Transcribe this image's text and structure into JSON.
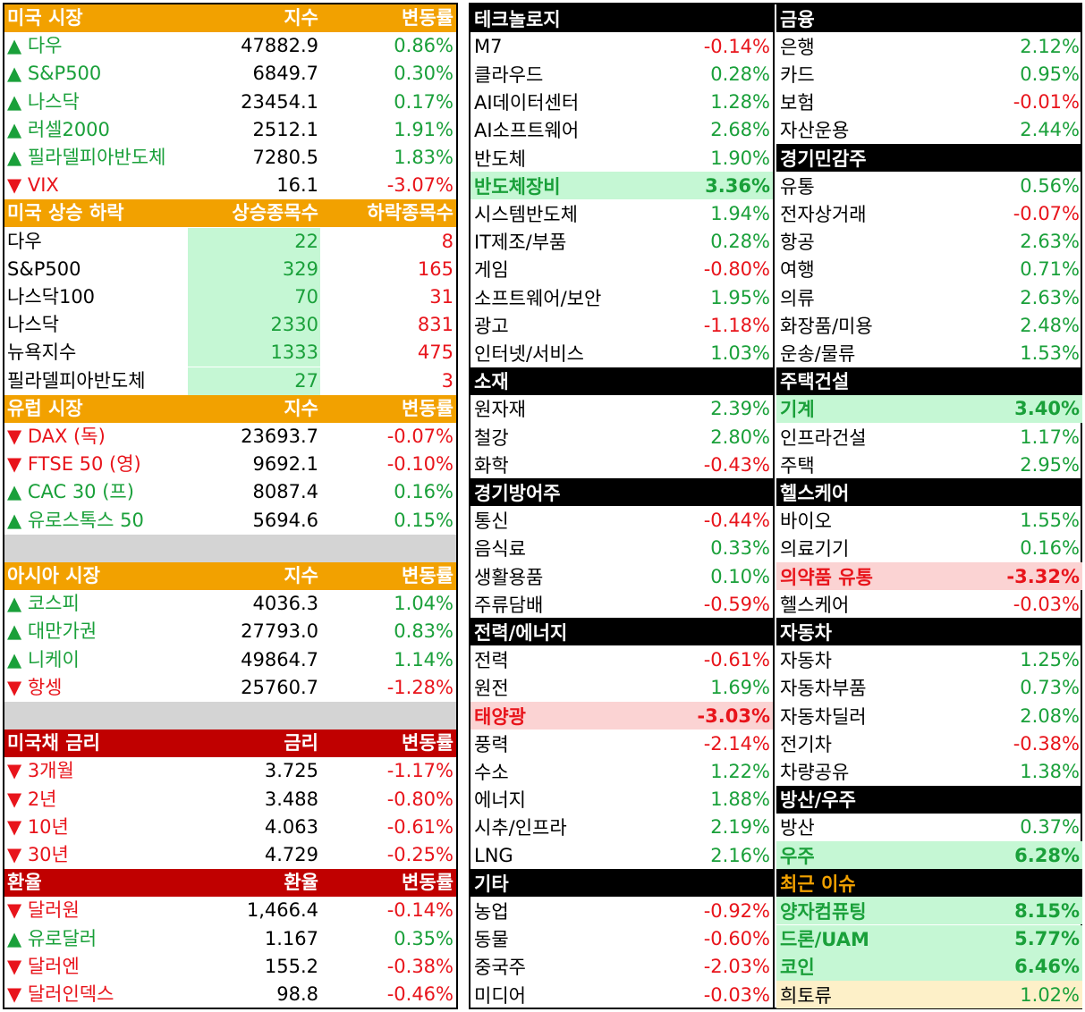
{
  "left": {
    "us_market": {
      "header": [
        "미국 시장",
        "지수",
        "변동률"
      ],
      "rows": [
        {
          "name": "▲ 다우",
          "value": "47882.9",
          "change": "0.86%",
          "dir": "up"
        },
        {
          "name": "▲ S&P500",
          "value": "6849.7",
          "change": "0.30%",
          "dir": "up"
        },
        {
          "name": "▲ 나스닥",
          "value": "23454.1",
          "change": "0.17%",
          "dir": "up"
        },
        {
          "name": "▲ 러셀2000",
          "value": "2512.1",
          "change": "1.91%",
          "dir": "up"
        },
        {
          "name": "▲ 필라델피아반도체",
          "value": "7280.5",
          "change": "1.83%",
          "dir": "up"
        },
        {
          "name": "▼ VIX",
          "value": "16.1",
          "change": "-3.07%",
          "dir": "dn"
        }
      ]
    },
    "us_breadth": {
      "header": [
        "미국 상승 하락",
        "상승종목수",
        "하락종목수"
      ],
      "rows": [
        {
          "name": "다우",
          "up": "22",
          "down": "8"
        },
        {
          "name": "S&P500",
          "up": "329",
          "down": "165"
        },
        {
          "name": "나스닥100",
          "up": "70",
          "down": "31"
        },
        {
          "name": "나스닥",
          "up": "2330",
          "down": "831"
        },
        {
          "name": "뉴욕지수",
          "up": "1333",
          "down": "475"
        },
        {
          "name": "필라델피아반도체",
          "up": "27",
          "down": "3"
        }
      ]
    },
    "europe": {
      "header": [
        "유럽 시장",
        "지수",
        "변동률"
      ],
      "rows": [
        {
          "name": "▼ DAX (독)",
          "value": "23693.7",
          "change": "-0.07%",
          "dir": "dn"
        },
        {
          "name": "▼ FTSE 50 (영)",
          "value": "9692.1",
          "change": "-0.10%",
          "dir": "dn"
        },
        {
          "name": "▲ CAC 30 (프)",
          "value": "8087.4",
          "change": "0.16%",
          "dir": "up"
        },
        {
          "name": "▲ 유로스톡스 50",
          "value": "5694.6",
          "change": "0.15%",
          "dir": "up"
        }
      ]
    },
    "asia": {
      "header": [
        "아시아 시장",
        "지수",
        "변동률"
      ],
      "rows": [
        {
          "name": "▲ 코스피",
          "value": "4036.3",
          "change": "1.04%",
          "dir": "up"
        },
        {
          "name": "▲ 대만가권",
          "value": "27793.0",
          "change": "0.83%",
          "dir": "up"
        },
        {
          "name": "▲ 니케이",
          "value": "49864.7",
          "change": "1.14%",
          "dir": "up"
        },
        {
          "name": "▼ 항셍",
          "value": "25760.7",
          "change": "-1.28%",
          "dir": "dn"
        }
      ]
    },
    "treasury": {
      "header": [
        "미국채 금리",
        "금리",
        "변동률"
      ],
      "rows": [
        {
          "name": "▼ 3개월",
          "value": "3.725",
          "change": "-1.17%",
          "dir": "dn"
        },
        {
          "name": "▼ 2년",
          "value": "3.488",
          "change": "-0.80%",
          "dir": "dn"
        },
        {
          "name": "▼ 10년",
          "value": "4.063",
          "change": "-0.61%",
          "dir": "dn"
        },
        {
          "name": "▼ 30년",
          "value": "4.729",
          "change": "-0.25%",
          "dir": "dn"
        }
      ]
    },
    "fx": {
      "header": [
        "환율",
        "환율",
        "변동률"
      ],
      "rows": [
        {
          "name": "▼ 달러원",
          "value": "1,466.4",
          "change": "-0.14%",
          "dir": "dn"
        },
        {
          "name": "▲ 유로달러",
          "value": "1.167",
          "change": "0.35%",
          "dir": "up"
        },
        {
          "name": "▼ 달러엔",
          "value": "155.2",
          "change": "-0.38%",
          "dir": "dn"
        },
        {
          "name": "▼ 달러인덱스",
          "value": "98.8",
          "change": "-0.46%",
          "dir": "dn"
        }
      ]
    }
  },
  "sectors": {
    "colA": [
      {
        "title": "테크놀로지",
        "items": [
          {
            "name": "M7",
            "change": "-0.14%",
            "dir": "dn"
          },
          {
            "name": "클라우드",
            "change": "0.28%",
            "dir": "up"
          },
          {
            "name": "AI데이터센터",
            "change": "1.28%",
            "dir": "up"
          },
          {
            "name": "AI소프트웨어",
            "change": "2.68%",
            "dir": "up"
          },
          {
            "name": "반도체",
            "change": "1.90%",
            "dir": "up"
          },
          {
            "name": "반도체장비",
            "change": "3.36%",
            "dir": "up",
            "hl": "g"
          },
          {
            "name": "시스템반도체",
            "change": "1.94%",
            "dir": "up"
          },
          {
            "name": "IT제조/부품",
            "change": "0.28%",
            "dir": "up"
          },
          {
            "name": "게임",
            "change": "-0.80%",
            "dir": "dn"
          },
          {
            "name": "소프트웨어/보안",
            "change": "1.95%",
            "dir": "up"
          },
          {
            "name": "광고",
            "change": "-1.18%",
            "dir": "dn"
          },
          {
            "name": "인터넷/서비스",
            "change": "1.03%",
            "dir": "up"
          }
        ]
      },
      {
        "title": "소재",
        "items": [
          {
            "name": "원자재",
            "change": "2.39%",
            "dir": "up"
          },
          {
            "name": "철강",
            "change": "2.80%",
            "dir": "up"
          },
          {
            "name": "화학",
            "change": "-0.43%",
            "dir": "dn"
          }
        ]
      },
      {
        "title": "경기방어주",
        "items": [
          {
            "name": "통신",
            "change": "-0.44%",
            "dir": "dn"
          },
          {
            "name": "음식료",
            "change": "0.33%",
            "dir": "up"
          },
          {
            "name": "생활용품",
            "change": "0.10%",
            "dir": "up"
          },
          {
            "name": "주류담배",
            "change": "-0.59%",
            "dir": "dn"
          }
        ]
      },
      {
        "title": "전력/에너지",
        "items": [
          {
            "name": "전력",
            "change": "-0.61%",
            "dir": "dn"
          },
          {
            "name": "원전",
            "change": "1.69%",
            "dir": "up"
          },
          {
            "name": "태양광",
            "change": "-3.03%",
            "dir": "dn",
            "hl": "r"
          },
          {
            "name": "풍력",
            "change": "-2.14%",
            "dir": "dn"
          },
          {
            "name": "수소",
            "change": "1.22%",
            "dir": "up"
          },
          {
            "name": "에너지",
            "change": "1.88%",
            "dir": "up"
          },
          {
            "name": "시추/인프라",
            "change": "2.19%",
            "dir": "up"
          },
          {
            "name": "LNG",
            "change": "2.16%",
            "dir": "up"
          }
        ]
      },
      {
        "title": "기타",
        "items": [
          {
            "name": "농업",
            "change": "-0.92%",
            "dir": "dn"
          },
          {
            "name": "동물",
            "change": "-0.60%",
            "dir": "dn"
          },
          {
            "name": "중국주",
            "change": "-2.03%",
            "dir": "dn"
          },
          {
            "name": "미디어",
            "change": "-0.03%",
            "dir": "dn"
          }
        ]
      }
    ],
    "colB": [
      {
        "title": "금융",
        "items": [
          {
            "name": "은행",
            "change": "2.12%",
            "dir": "up"
          },
          {
            "name": "카드",
            "change": "0.95%",
            "dir": "up"
          },
          {
            "name": "보험",
            "change": "-0.01%",
            "dir": "dn"
          },
          {
            "name": "자산운용",
            "change": "2.44%",
            "dir": "up"
          }
        ]
      },
      {
        "title": "경기민감주",
        "items": [
          {
            "name": "유통",
            "change": "0.56%",
            "dir": "up"
          },
          {
            "name": "전자상거래",
            "change": "-0.07%",
            "dir": "dn"
          },
          {
            "name": "항공",
            "change": "2.63%",
            "dir": "up"
          },
          {
            "name": "여행",
            "change": "0.71%",
            "dir": "up"
          },
          {
            "name": "의류",
            "change": "2.63%",
            "dir": "up"
          },
          {
            "name": "화장품/미용",
            "change": "2.48%",
            "dir": "up"
          },
          {
            "name": "운송/물류",
            "change": "1.53%",
            "dir": "up"
          }
        ]
      },
      {
        "title": "주택건설",
        "items": [
          {
            "name": "기계",
            "change": "3.40%",
            "dir": "up",
            "hl": "g"
          },
          {
            "name": "인프라건설",
            "change": "1.17%",
            "dir": "up"
          },
          {
            "name": "주택",
            "change": "2.95%",
            "dir": "up"
          }
        ]
      },
      {
        "title": "헬스케어",
        "items": [
          {
            "name": "바이오",
            "change": "1.55%",
            "dir": "up"
          },
          {
            "name": "의료기기",
            "change": "0.16%",
            "dir": "up"
          },
          {
            "name": "의약품 유통",
            "change": "-3.32%",
            "dir": "dn",
            "hl": "r"
          },
          {
            "name": "헬스케어",
            "change": "-0.03%",
            "dir": "dn"
          }
        ]
      },
      {
        "title": "자동차",
        "items": [
          {
            "name": "자동차",
            "change": "1.25%",
            "dir": "up"
          },
          {
            "name": "자동차부품",
            "change": "0.73%",
            "dir": "up"
          },
          {
            "name": "자동차딜러",
            "change": "2.08%",
            "dir": "up"
          },
          {
            "name": "전기차",
            "change": "-0.38%",
            "dir": "dn"
          },
          {
            "name": "차량공유",
            "change": "1.38%",
            "dir": "up"
          }
        ]
      },
      {
        "title": "방산/우주",
        "items": [
          {
            "name": "방산",
            "change": "0.37%",
            "dir": "up"
          },
          {
            "name": "우주",
            "change": "6.28%",
            "dir": "up",
            "hl": "g"
          }
        ]
      },
      {
        "title": "최근 이슈",
        "gold": true,
        "items": [
          {
            "name": "양자컴퓨팅",
            "change": "8.15%",
            "dir": "up",
            "hl": "g"
          },
          {
            "name": "드론/UAM",
            "change": "5.77%",
            "dir": "up",
            "hl": "g"
          },
          {
            "name": "코인",
            "change": "6.46%",
            "dir": "up",
            "hl": "g"
          },
          {
            "name": "희토류",
            "change": "1.02%",
            "dir": "up",
            "hl": "y"
          }
        ]
      }
    ]
  },
  "colors": {
    "up": "#1aa03a",
    "down": "#e8141b",
    "orange": "#f2a100",
    "red": "#c00000",
    "highlight_green": "#c5f7d4",
    "highlight_red": "#fbd3d3"
  }
}
